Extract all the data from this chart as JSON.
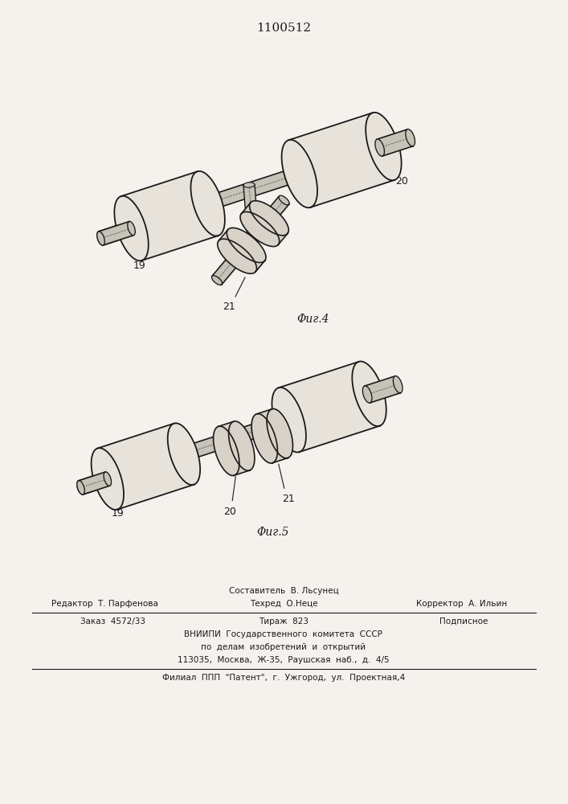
{
  "title": "1100512",
  "bg_color": "#f5f2ee",
  "line_color": "#1a1a1a",
  "fill_cyl": "#e8e3da",
  "fill_disk": "#d8d2c8",
  "fill_shaft": "#c8c3b8",
  "fig4_label": "Φиг.4",
  "fig5_label": "Φиг.5",
  "label_19": "19",
  "label_20": "20",
  "label_21": "21",
  "footer": [
    {
      "type": "center",
      "text": "Составитель  В. Льсунец"
    },
    {
      "type": "three",
      "left": "Редактор  Т. Парфенова",
      "mid": "Техред  О.Неце",
      "right": "Корректор  А. Ильин"
    },
    {
      "type": "line"
    },
    {
      "type": "three",
      "left": "Заказ  4572/33",
      "mid": "Тираж  823",
      "right": "Подписное"
    },
    {
      "type": "center",
      "text": "ВНИИПИ  Государственного  комитета  СССР"
    },
    {
      "type": "center",
      "text": "по  делам  изобретений  и  открытий"
    },
    {
      "type": "center",
      "text": "113035,  Москва,  Ж-35,  Раушская  наб.,  д.  4/5"
    },
    {
      "type": "line"
    },
    {
      "type": "center",
      "text": "Филиал  ППП  \"Патент\",  г.  Ужгород,  ул.  Проектная,4"
    }
  ]
}
